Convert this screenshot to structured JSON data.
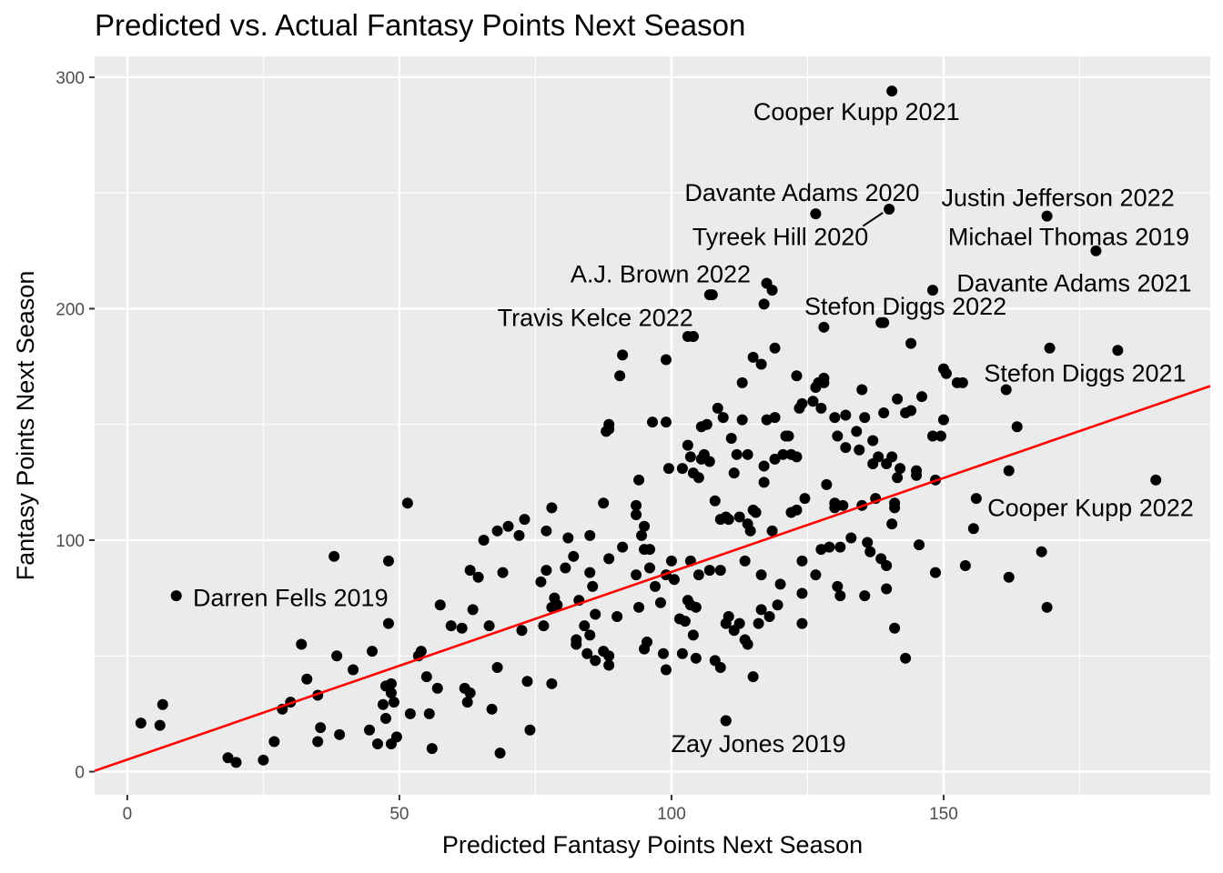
{
  "chart_data": {
    "type": "scatter",
    "title": "Predicted vs. Actual Fantasy Points Next Season",
    "xlabel": "Predicted Fantasy Points Next Season",
    "ylabel": "Fantasy Points Next Season",
    "xlim": [
      -6,
      199
    ],
    "ylim": [
      -10,
      309
    ],
    "x_ticks": [
      0,
      50,
      100,
      150
    ],
    "y_ticks": [
      0,
      100,
      200,
      300
    ],
    "x_minor_ticks": [
      25,
      75,
      125,
      175
    ],
    "y_minor_ticks": [
      50,
      150,
      250
    ],
    "grid": true,
    "panel_background": "#ebebeb",
    "grid_color": "#ffffff",
    "point_color": "#000000",
    "trend_line": {
      "color": "#ff0000",
      "slope": 0.811,
      "intercept": 5.2
    },
    "labeled_points": [
      {
        "label": "Cooper Kupp 2021",
        "x": 140.5,
        "y": 294,
        "label_x": 134,
        "label_y": 285
      },
      {
        "label": "Davante Adams 2020",
        "x": 126.5,
        "y": 241,
        "label_x": 124,
        "label_y": 250
      },
      {
        "label": "Justin Jefferson 2022",
        "x": 169,
        "y": 240,
        "label_x": 171,
        "label_y": 248
      },
      {
        "label": "Tyreek Hill 2020",
        "x": 140,
        "y": 243,
        "label_x": 120,
        "label_y": 231
      },
      {
        "label": "Michael Thomas 2019",
        "x": 178,
        "y": 225,
        "label_x": 173,
        "label_y": 231
      },
      {
        "label": "A.J. Brown 2022",
        "x": 107,
        "y": 206,
        "label_x": 98,
        "label_y": 215
      },
      {
        "label": "Davante Adams 2021",
        "x": 148,
        "y": 208,
        "label_x": 174,
        "label_y": 211
      },
      {
        "label": "Stefon Diggs 2022",
        "x": 139,
        "y": 194,
        "label_x": 143,
        "label_y": 201
      },
      {
        "label": "Travis Kelce 2022",
        "x": 104,
        "y": 188,
        "label_x": 86,
        "label_y": 196
      },
      {
        "label": "Stefon Diggs 2021",
        "x": 182,
        "y": 182,
        "label_x": 176,
        "label_y": 172
      },
      {
        "label": "Cooper Kupp 2022",
        "x": 189,
        "y": 126,
        "label_x": 177,
        "label_y": 114
      },
      {
        "label": "Darren Fells 2019",
        "x": 9,
        "y": 76,
        "label_x": 30,
        "label_y": 75
      },
      {
        "label": "Zay Jones 2019",
        "x": 110,
        "y": 22,
        "label_x": 116,
        "label_y": 12
      }
    ],
    "points": [
      [
        2.5,
        21
      ],
      [
        6,
        20
      ],
      [
        6.5,
        29
      ],
      [
        18.5,
        6
      ],
      [
        20,
        4
      ],
      [
        25,
        5
      ],
      [
        27,
        13
      ],
      [
        28.5,
        27
      ],
      [
        30,
        30
      ],
      [
        32,
        55
      ],
      [
        33,
        40
      ],
      [
        35,
        13
      ],
      [
        35,
        33
      ],
      [
        35.5,
        19
      ],
      [
        38,
        93
      ],
      [
        38.5,
        50
      ],
      [
        39,
        16
      ],
      [
        41.5,
        44
      ],
      [
        44.5,
        18
      ],
      [
        45,
        52
      ],
      [
        46,
        12
      ],
      [
        47,
        29
      ],
      [
        47.5,
        37
      ],
      [
        47.5,
        23
      ],
      [
        48,
        64
      ],
      [
        48,
        91
      ],
      [
        48.5,
        12
      ],
      [
        48.5,
        38
      ],
      [
        48.5,
        34
      ],
      [
        49,
        30
      ],
      [
        49.5,
        15
      ],
      [
        51.5,
        116
      ],
      [
        52,
        25
      ],
      [
        53.5,
        50
      ],
      [
        54,
        52
      ],
      [
        55,
        41
      ],
      [
        55.5,
        25
      ],
      [
        56,
        10
      ],
      [
        57,
        36
      ],
      [
        57.5,
        72
      ],
      [
        59.5,
        63
      ],
      [
        61.5,
        62
      ],
      [
        62,
        36
      ],
      [
        62.5,
        30
      ],
      [
        63,
        34
      ],
      [
        63,
        87
      ],
      [
        63.5,
        70
      ],
      [
        64.5,
        84
      ],
      [
        65.5,
        100
      ],
      [
        66.5,
        63
      ],
      [
        67,
        27
      ],
      [
        68,
        104
      ],
      [
        68,
        45
      ],
      [
        68.5,
        8
      ],
      [
        69,
        86
      ],
      [
        70,
        106
      ],
      [
        72,
        102
      ],
      [
        72.5,
        61
      ],
      [
        73,
        109
      ],
      [
        73.5,
        39
      ],
      [
        74,
        18
      ],
      [
        76,
        82
      ],
      [
        76.5,
        63
      ],
      [
        77,
        87
      ],
      [
        77,
        104
      ],
      [
        78,
        71
      ],
      [
        78,
        114
      ],
      [
        78,
        38
      ],
      [
        78.5,
        75
      ],
      [
        79,
        72
      ],
      [
        80.5,
        88
      ],
      [
        81,
        101
      ],
      [
        82,
        93
      ],
      [
        82.5,
        57
      ],
      [
        82.5,
        55
      ],
      [
        83,
        74
      ],
      [
        84,
        63
      ],
      [
        84.5,
        51
      ],
      [
        85,
        102
      ],
      [
        85,
        86
      ],
      [
        85,
        59
      ],
      [
        85.5,
        80
      ],
      [
        86,
        48
      ],
      [
        86,
        68
      ],
      [
        87.5,
        116
      ],
      [
        87.5,
        52
      ],
      [
        88,
        147
      ],
      [
        88.5,
        150
      ],
      [
        88.5,
        46
      ],
      [
        88.5,
        50
      ],
      [
        88.5,
        148
      ],
      [
        88.5,
        92
      ],
      [
        90,
        67
      ],
      [
        90.5,
        171
      ],
      [
        91,
        180
      ],
      [
        91,
        97
      ],
      [
        93.5,
        115
      ],
      [
        93.5,
        111
      ],
      [
        93.5,
        85
      ],
      [
        94,
        126
      ],
      [
        94,
        71
      ],
      [
        94.5,
        102
      ],
      [
        95,
        96
      ],
      [
        95,
        106
      ],
      [
        95,
        53
      ],
      [
        95.5,
        56
      ],
      [
        96,
        96
      ],
      [
        96,
        88
      ],
      [
        96.5,
        151
      ],
      [
        97,
        80
      ],
      [
        98,
        73
      ],
      [
        98.5,
        51
      ],
      [
        99,
        151
      ],
      [
        99,
        44
      ],
      [
        99,
        85
      ],
      [
        99,
        178
      ],
      [
        99.5,
        131
      ],
      [
        100,
        91
      ],
      [
        100.5,
        83
      ],
      [
        101.5,
        66
      ],
      [
        102,
        51
      ],
      [
        102,
        131
      ],
      [
        102.5,
        65
      ],
      [
        103,
        74
      ],
      [
        103,
        188
      ],
      [
        103,
        141
      ],
      [
        103.5,
        91
      ],
      [
        103.5,
        136
      ],
      [
        103.5,
        72
      ],
      [
        104,
        59
      ],
      [
        104,
        129
      ],
      [
        104,
        188
      ],
      [
        104.5,
        71
      ],
      [
        104.5,
        49
      ],
      [
        105,
        127
      ],
      [
        105,
        85
      ],
      [
        105.5,
        135
      ],
      [
        105.5,
        149
      ],
      [
        106,
        137
      ],
      [
        106.5,
        150
      ],
      [
        107,
        134
      ],
      [
        107,
        87
      ],
      [
        107.5,
        206
      ],
      [
        108,
        117
      ],
      [
        108,
        48
      ],
      [
        108.5,
        157
      ],
      [
        109,
        87
      ],
      [
        109,
        45
      ],
      [
        109,
        109
      ],
      [
        109.5,
        153
      ],
      [
        110,
        110
      ],
      [
        110,
        64
      ],
      [
        110,
        22
      ],
      [
        110.5,
        67
      ],
      [
        110.5,
        109
      ],
      [
        111,
        144
      ],
      [
        111.5,
        61
      ],
      [
        111.5,
        129
      ],
      [
        112,
        137
      ],
      [
        112.5,
        64
      ],
      [
        112.5,
        110
      ],
      [
        113,
        168
      ],
      [
        113,
        152
      ],
      [
        113.5,
        91
      ],
      [
        113.5,
        57
      ],
      [
        114,
        55
      ],
      [
        114,
        137
      ],
      [
        114,
        107
      ],
      [
        114.5,
        104
      ],
      [
        115,
        113
      ],
      [
        115,
        41
      ],
      [
        115,
        179
      ],
      [
        115.5,
        112
      ],
      [
        116,
        64
      ],
      [
        116.5,
        70
      ],
      [
        116.5,
        176
      ],
      [
        116.5,
        85
      ],
      [
        117,
        125
      ],
      [
        117,
        132
      ],
      [
        117,
        202
      ],
      [
        117.5,
        211
      ],
      [
        117.5,
        152
      ],
      [
        118,
        67
      ],
      [
        118.5,
        208
      ],
      [
        118.5,
        104
      ],
      [
        119,
        153
      ],
      [
        119,
        135
      ],
      [
        119,
        183
      ],
      [
        119.5,
        72
      ],
      [
        120,
        81
      ],
      [
        120.5,
        137
      ],
      [
        121,
        145
      ],
      [
        121.5,
        145
      ],
      [
        122,
        112
      ],
      [
        122,
        137
      ],
      [
        123,
        171
      ],
      [
        123,
        113
      ],
      [
        123,
        136
      ],
      [
        123.5,
        157
      ],
      [
        124,
        159
      ],
      [
        124,
        77
      ],
      [
        124,
        64
      ],
      [
        124,
        91
      ],
      [
        124.5,
        118
      ],
      [
        126,
        160
      ],
      [
        126.5,
        85
      ],
      [
        126.5,
        166
      ],
      [
        127,
        168
      ],
      [
        127.5,
        157
      ],
      [
        127.5,
        96
      ],
      [
        128,
        170
      ],
      [
        128,
        168
      ],
      [
        128,
        192
      ],
      [
        128.5,
        124
      ],
      [
        129,
        97
      ],
      [
        130,
        153
      ],
      [
        130,
        116
      ],
      [
        130,
        114
      ],
      [
        130.5,
        145
      ],
      [
        130.5,
        80
      ],
      [
        131,
        76
      ],
      [
        131,
        97
      ],
      [
        131.5,
        115
      ],
      [
        132,
        154
      ],
      [
        132,
        140
      ],
      [
        133,
        101
      ],
      [
        134,
        147
      ],
      [
        134.5,
        139
      ],
      [
        135,
        165
      ],
      [
        135,
        115
      ],
      [
        135.5,
        153
      ],
      [
        135.5,
        76
      ],
      [
        136,
        99
      ],
      [
        136.5,
        95
      ],
      [
        137,
        133
      ],
      [
        137,
        143
      ],
      [
        137.5,
        118
      ],
      [
        138,
        136
      ],
      [
        138.5,
        92
      ],
      [
        138.5,
        194
      ],
      [
        139,
        155
      ],
      [
        139.5,
        133
      ],
      [
        139.5,
        89
      ],
      [
        139.5,
        79
      ],
      [
        140.5,
        136
      ],
      [
        140.5,
        107
      ],
      [
        141,
        62
      ],
      [
        141,
        116
      ],
      [
        141,
        114
      ],
      [
        141.5,
        161
      ],
      [
        141.5,
        127
      ],
      [
        142,
        131
      ],
      [
        143,
        49
      ],
      [
        143,
        155
      ],
      [
        144,
        185
      ],
      [
        144,
        156
      ],
      [
        145,
        130
      ],
      [
        145,
        128
      ],
      [
        145.5,
        98
      ],
      [
        146,
        162
      ],
      [
        148,
        145
      ],
      [
        148.5,
        126
      ],
      [
        148.5,
        86
      ],
      [
        149.5,
        145
      ],
      [
        150,
        152
      ],
      [
        150,
        174
      ],
      [
        150.5,
        172
      ],
      [
        152.5,
        168
      ],
      [
        153.5,
        168
      ],
      [
        154,
        89
      ],
      [
        155.5,
        105
      ],
      [
        156,
        118
      ],
      [
        161.5,
        165
      ],
      [
        162,
        130
      ],
      [
        162,
        84
      ],
      [
        163.5,
        149
      ],
      [
        168,
        95
      ],
      [
        169,
        71
      ],
      [
        169.5,
        183
      ]
    ]
  }
}
